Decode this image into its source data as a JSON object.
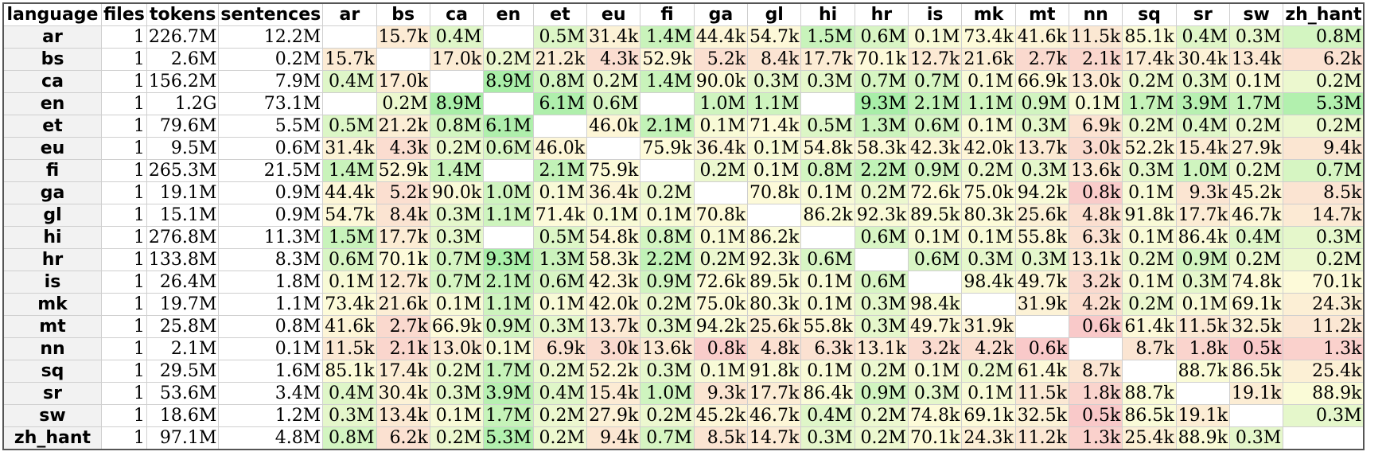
{
  "table": {
    "headers": [
      "language",
      "files",
      "tokens",
      "sentences",
      "ar",
      "bs",
      "ca",
      "en",
      "et",
      "eu",
      "fi",
      "ga",
      "gl",
      "hi",
      "hr",
      "is",
      "mk",
      "mt",
      "nn",
      "sq",
      "sr",
      "sw",
      "zh_hant"
    ],
    "rows": [
      {
        "language": "ar",
        "files": "1",
        "tokens": "226.7M",
        "sentences": "12.2M",
        "cells": [
          "",
          "15.7k",
          "0.4M",
          "",
          "0.5M",
          "31.4k",
          "1.4M",
          "44.4k",
          "54.7k",
          "1.5M",
          "0.6M",
          "0.1M",
          "73.4k",
          "41.6k",
          "11.5k",
          "85.1k",
          "0.4M",
          "0.3M",
          "0.8M"
        ]
      },
      {
        "language": "bs",
        "files": "1",
        "tokens": "2.6M",
        "sentences": "0.2M",
        "cells": [
          "15.7k",
          "",
          "17.0k",
          "0.2M",
          "21.2k",
          "4.3k",
          "52.9k",
          "5.2k",
          "8.4k",
          "17.7k",
          "70.1k",
          "12.7k",
          "21.6k",
          "2.7k",
          "2.1k",
          "17.4k",
          "30.4k",
          "13.4k",
          "6.2k"
        ]
      },
      {
        "language": "ca",
        "files": "1",
        "tokens": "156.2M",
        "sentences": "7.9M",
        "cells": [
          "0.4M",
          "17.0k",
          "",
          "8.9M",
          "0.8M",
          "0.2M",
          "1.4M",
          "90.0k",
          "0.3M",
          "0.3M",
          "0.7M",
          "0.7M",
          "0.1M",
          "66.9k",
          "13.0k",
          "0.2M",
          "0.3M",
          "0.1M",
          "0.2M"
        ]
      },
      {
        "language": "en",
        "files": "1",
        "tokens": "1.2G",
        "sentences": "73.1M",
        "cells": [
          "",
          "0.2M",
          "8.9M",
          "",
          "6.1M",
          "0.6M",
          "",
          "1.0M",
          "1.1M",
          "",
          "9.3M",
          "2.1M",
          "1.1M",
          "0.9M",
          "0.1M",
          "1.7M",
          "3.9M",
          "1.7M",
          "5.3M"
        ]
      },
      {
        "language": "et",
        "files": "1",
        "tokens": "79.6M",
        "sentences": "5.5M",
        "cells": [
          "0.5M",
          "21.2k",
          "0.8M",
          "6.1M",
          "",
          "46.0k",
          "2.1M",
          "0.1M",
          "71.4k",
          "0.5M",
          "1.3M",
          "0.6M",
          "0.1M",
          "0.3M",
          "6.9k",
          "0.2M",
          "0.4M",
          "0.2M",
          "0.2M"
        ]
      },
      {
        "language": "eu",
        "files": "1",
        "tokens": "9.5M",
        "sentences": "0.6M",
        "cells": [
          "31.4k",
          "4.3k",
          "0.2M",
          "0.6M",
          "46.0k",
          "",
          "75.9k",
          "36.4k",
          "0.1M",
          "54.8k",
          "58.3k",
          "42.3k",
          "42.0k",
          "13.7k",
          "3.0k",
          "52.2k",
          "15.4k",
          "27.9k",
          "9.4k"
        ]
      },
      {
        "language": "fi",
        "files": "1",
        "tokens": "265.3M",
        "sentences": "21.5M",
        "cells": [
          "1.4M",
          "52.9k",
          "1.4M",
          "",
          "2.1M",
          "75.9k",
          "",
          "0.2M",
          "0.1M",
          "0.8M",
          "2.2M",
          "0.9M",
          "0.2M",
          "0.3M",
          "13.6k",
          "0.3M",
          "1.0M",
          "0.2M",
          "0.7M"
        ]
      },
      {
        "language": "ga",
        "files": "1",
        "tokens": "19.1M",
        "sentences": "0.9M",
        "cells": [
          "44.4k",
          "5.2k",
          "90.0k",
          "1.0M",
          "0.1M",
          "36.4k",
          "0.2M",
          "",
          "70.8k",
          "0.1M",
          "0.2M",
          "72.6k",
          "75.0k",
          "94.2k",
          "0.8k",
          "0.1M",
          "9.3k",
          "45.2k",
          "8.5k"
        ]
      },
      {
        "language": "gl",
        "files": "1",
        "tokens": "15.1M",
        "sentences": "0.9M",
        "cells": [
          "54.7k",
          "8.4k",
          "0.3M",
          "1.1M",
          "71.4k",
          "0.1M",
          "0.1M",
          "70.8k",
          "",
          "86.2k",
          "92.3k",
          "89.5k",
          "80.3k",
          "25.6k",
          "4.8k",
          "91.8k",
          "17.7k",
          "46.7k",
          "14.7k"
        ]
      },
      {
        "language": "hi",
        "files": "1",
        "tokens": "276.8M",
        "sentences": "11.3M",
        "cells": [
          "1.5M",
          "17.7k",
          "0.3M",
          "",
          "0.5M",
          "54.8k",
          "0.8M",
          "0.1M",
          "86.2k",
          "",
          "0.6M",
          "0.1M",
          "0.1M",
          "55.8k",
          "6.3k",
          "0.1M",
          "86.4k",
          "0.4M",
          "0.3M"
        ]
      },
      {
        "language": "hr",
        "files": "1",
        "tokens": "133.8M",
        "sentences": "8.3M",
        "cells": [
          "0.6M",
          "70.1k",
          "0.7M",
          "9.3M",
          "1.3M",
          "58.3k",
          "2.2M",
          "0.2M",
          "92.3k",
          "0.6M",
          "",
          "0.6M",
          "0.3M",
          "0.3M",
          "13.1k",
          "0.2M",
          "0.9M",
          "0.2M",
          "0.2M"
        ]
      },
      {
        "language": "is",
        "files": "1",
        "tokens": "26.4M",
        "sentences": "1.8M",
        "cells": [
          "0.1M",
          "12.7k",
          "0.7M",
          "2.1M",
          "0.6M",
          "42.3k",
          "0.9M",
          "72.6k",
          "89.5k",
          "0.1M",
          "0.6M",
          "",
          "98.4k",
          "49.7k",
          "3.2k",
          "0.1M",
          "0.3M",
          "74.8k",
          "70.1k"
        ]
      },
      {
        "language": "mk",
        "files": "1",
        "tokens": "19.7M",
        "sentences": "1.1M",
        "cells": [
          "73.4k",
          "21.6k",
          "0.1M",
          "1.1M",
          "0.1M",
          "42.0k",
          "0.2M",
          "75.0k",
          "80.3k",
          "0.1M",
          "0.3M",
          "98.4k",
          "",
          "31.9k",
          "4.2k",
          "0.2M",
          "0.1M",
          "69.1k",
          "24.3k"
        ]
      },
      {
        "language": "mt",
        "files": "1",
        "tokens": "25.8M",
        "sentences": "0.8M",
        "cells": [
          "41.6k",
          "2.7k",
          "66.9k",
          "0.9M",
          "0.3M",
          "13.7k",
          "0.3M",
          "94.2k",
          "25.6k",
          "55.8k",
          "0.3M",
          "49.7k",
          "31.9k",
          "",
          "0.6k",
          "61.4k",
          "11.5k",
          "32.5k",
          "11.2k"
        ]
      },
      {
        "language": "nn",
        "files": "1",
        "tokens": "2.1M",
        "sentences": "0.1M",
        "cells": [
          "11.5k",
          "2.1k",
          "13.0k",
          "0.1M",
          "6.9k",
          "3.0k",
          "13.6k",
          "0.8k",
          "4.8k",
          "6.3k",
          "13.1k",
          "3.2k",
          "4.2k",
          "0.6k",
          "",
          "8.7k",
          "1.8k",
          "0.5k",
          "1.3k"
        ]
      },
      {
        "language": "sq",
        "files": "1",
        "tokens": "29.5M",
        "sentences": "1.6M",
        "cells": [
          "85.1k",
          "17.4k",
          "0.2M",
          "1.7M",
          "0.2M",
          "52.2k",
          "0.3M",
          "0.1M",
          "91.8k",
          "0.1M",
          "0.2M",
          "0.1M",
          "0.2M",
          "61.4k",
          "8.7k",
          "",
          "88.7k",
          "86.5k",
          "25.4k"
        ]
      },
      {
        "language": "sr",
        "files": "1",
        "tokens": "53.6M",
        "sentences": "3.4M",
        "cells": [
          "0.4M",
          "30.4k",
          "0.3M",
          "3.9M",
          "0.4M",
          "15.4k",
          "1.0M",
          "9.3k",
          "17.7k",
          "86.4k",
          "0.9M",
          "0.3M",
          "0.1M",
          "11.5k",
          "1.8k",
          "88.7k",
          "",
          "19.1k",
          "88.9k"
        ]
      },
      {
        "language": "sw",
        "files": "1",
        "tokens": "18.6M",
        "sentences": "1.2M",
        "cells": [
          "0.3M",
          "13.4k",
          "0.1M",
          "1.7M",
          "0.2M",
          "27.9k",
          "0.2M",
          "45.2k",
          "46.7k",
          "0.4M",
          "0.2M",
          "74.8k",
          "69.1k",
          "32.5k",
          "0.5k",
          "86.5k",
          "19.1k",
          "",
          "0.3M"
        ]
      },
      {
        "language": "zh_hant",
        "files": "1",
        "tokens": "97.1M",
        "sentences": "4.8M",
        "cells": [
          "0.8M",
          "6.2k",
          "0.2M",
          "5.3M",
          "0.2M",
          "9.4k",
          "0.7M",
          "8.5k",
          "14.7k",
          "0.3M",
          "0.2M",
          "70.1k",
          "24.3k",
          "11.2k",
          "1.3k",
          "25.4k",
          "88.9k",
          "0.3M",
          ""
        ]
      }
    ]
  },
  "scale_colors": {
    "low": "#f9c9c9",
    "mid": "#fdfbd9",
    "high": "#a8eea8"
  }
}
